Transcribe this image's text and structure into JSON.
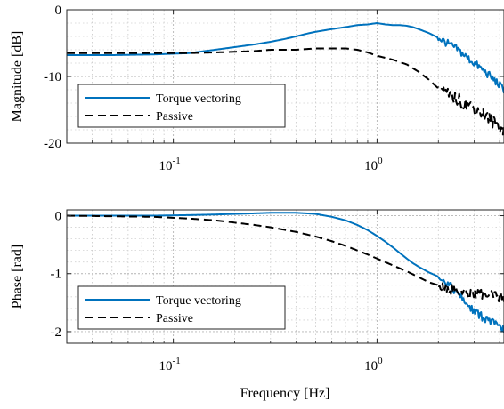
{
  "chart_data": [
    {
      "type": "line",
      "title": "",
      "xlabel": "",
      "ylabel": "Magnitude [dB]",
      "xscale": "log",
      "xlim": [
        0.03,
        4.2
      ],
      "ylim": [
        -20,
        0
      ],
      "xticks": [
        0.1,
        1
      ],
      "xtick_labels": [
        {
          "base": "10",
          "exp": "-1"
        },
        {
          "base": "10",
          "exp": "0"
        }
      ],
      "yticks": [
        0,
        -10,
        -20
      ],
      "ytick_labels": [
        "0",
        "-10",
        "-20"
      ],
      "grid": true,
      "minor_grid": true,
      "legend_position": "bottom-left",
      "series": [
        {
          "name": "Torque vectoring",
          "color": "#0072BD",
          "style": "solid",
          "noise_from": 2.0,
          "noise_amp": 0.6,
          "x": [
            0.03,
            0.05,
            0.08,
            0.12,
            0.16,
            0.2,
            0.25,
            0.3,
            0.35,
            0.4,
            0.45,
            0.5,
            0.6,
            0.7,
            0.8,
            0.9,
            1.0,
            1.1,
            1.2,
            1.3,
            1.4,
            1.5,
            1.6,
            1.8,
            2.0,
            2.2,
            2.5,
            2.8,
            3.0,
            3.3,
            3.6,
            3.9,
            4.2
          ],
          "y": [
            -6.8,
            -6.8,
            -6.7,
            -6.5,
            -6.0,
            -5.6,
            -5.2,
            -4.8,
            -4.4,
            -4.0,
            -3.6,
            -3.3,
            -2.9,
            -2.6,
            -2.3,
            -2.2,
            -2.0,
            -2.2,
            -2.3,
            -2.3,
            -2.4,
            -2.6,
            -2.9,
            -3.5,
            -4.2,
            -5.0,
            -6.0,
            -7.3,
            -8.0,
            -9.0,
            -10.0,
            -11.0,
            -12.0
          ]
        },
        {
          "name": "Passive",
          "color": "#000000",
          "style": "dashed",
          "noise_from": 2.0,
          "noise_amp": 1.0,
          "x": [
            0.03,
            0.05,
            0.08,
            0.12,
            0.16,
            0.2,
            0.25,
            0.3,
            0.4,
            0.5,
            0.6,
            0.7,
            0.8,
            0.9,
            1.0,
            1.2,
            1.4,
            1.6,
            1.8,
            2.0,
            2.1,
            2.2,
            2.5,
            2.8,
            3.0,
            3.3,
            3.6,
            3.9,
            4.2
          ],
          "y": [
            -6.5,
            -6.5,
            -6.5,
            -6.5,
            -6.4,
            -6.3,
            -6.2,
            -6.0,
            -6.0,
            -5.8,
            -5.8,
            -5.8,
            -6.0,
            -6.4,
            -6.9,
            -7.5,
            -8.2,
            -9.3,
            -10.5,
            -11.8,
            -12.3,
            -12.7,
            -13.5,
            -14.2,
            -14.8,
            -15.6,
            -16.5,
            -17.3,
            -18.0
          ]
        }
      ]
    },
    {
      "type": "line",
      "title": "",
      "xlabel": "Frequency [Hz]",
      "ylabel": "Phase [rad]",
      "xscale": "log",
      "xlim": [
        0.03,
        4.2
      ],
      "ylim": [
        -2.2,
        0.1
      ],
      "xticks": [
        0.1,
        1
      ],
      "xtick_labels": [
        {
          "base": "10",
          "exp": "-1"
        },
        {
          "base": "10",
          "exp": "0"
        }
      ],
      "yticks": [
        0,
        -1,
        -2
      ],
      "ytick_labels": [
        "0",
        "-1",
        "-2"
      ],
      "grid": true,
      "minor_grid": true,
      "legend_position": "bottom-left",
      "series": [
        {
          "name": "Torque vectoring",
          "color": "#0072BD",
          "style": "solid",
          "noise_from": 2.0,
          "noise_amp": 0.07,
          "x": [
            0.03,
            0.05,
            0.08,
            0.12,
            0.16,
            0.2,
            0.25,
            0.3,
            0.35,
            0.4,
            0.45,
            0.5,
            0.6,
            0.7,
            0.8,
            0.9,
            1.0,
            1.1,
            1.2,
            1.3,
            1.4,
            1.5,
            1.6,
            1.8,
            2.0,
            2.2,
            2.5,
            2.8,
            3.0,
            3.3,
            3.6,
            3.9,
            4.2
          ],
          "y": [
            0.0,
            0.0,
            0.0,
            0.01,
            0.02,
            0.03,
            0.04,
            0.05,
            0.05,
            0.05,
            0.04,
            0.03,
            -0.02,
            -0.08,
            -0.16,
            -0.25,
            -0.35,
            -0.45,
            -0.55,
            -0.65,
            -0.74,
            -0.82,
            -0.88,
            -0.98,
            -1.05,
            -1.15,
            -1.35,
            -1.55,
            -1.65,
            -1.75,
            -1.82,
            -1.9,
            -1.97
          ]
        },
        {
          "name": "Passive",
          "color": "#000000",
          "style": "dashed",
          "noise_from": 2.0,
          "noise_amp": 0.09,
          "x": [
            0.03,
            0.05,
            0.08,
            0.12,
            0.16,
            0.2,
            0.25,
            0.3,
            0.4,
            0.5,
            0.6,
            0.7,
            0.8,
            0.9,
            1.0,
            1.2,
            1.4,
            1.6,
            1.8,
            2.0,
            2.2,
            2.5,
            2.8,
            3.0,
            3.3,
            3.6,
            3.9,
            4.2
          ],
          "y": [
            0.0,
            -0.01,
            -0.02,
            -0.05,
            -0.08,
            -0.12,
            -0.16,
            -0.2,
            -0.28,
            -0.36,
            -0.44,
            -0.52,
            -0.6,
            -0.67,
            -0.74,
            -0.86,
            -0.96,
            -1.06,
            -1.15,
            -1.2,
            -1.25,
            -1.3,
            -1.35,
            -1.35,
            -1.35,
            -1.38,
            -1.4,
            -1.42
          ]
        }
      ]
    }
  ]
}
